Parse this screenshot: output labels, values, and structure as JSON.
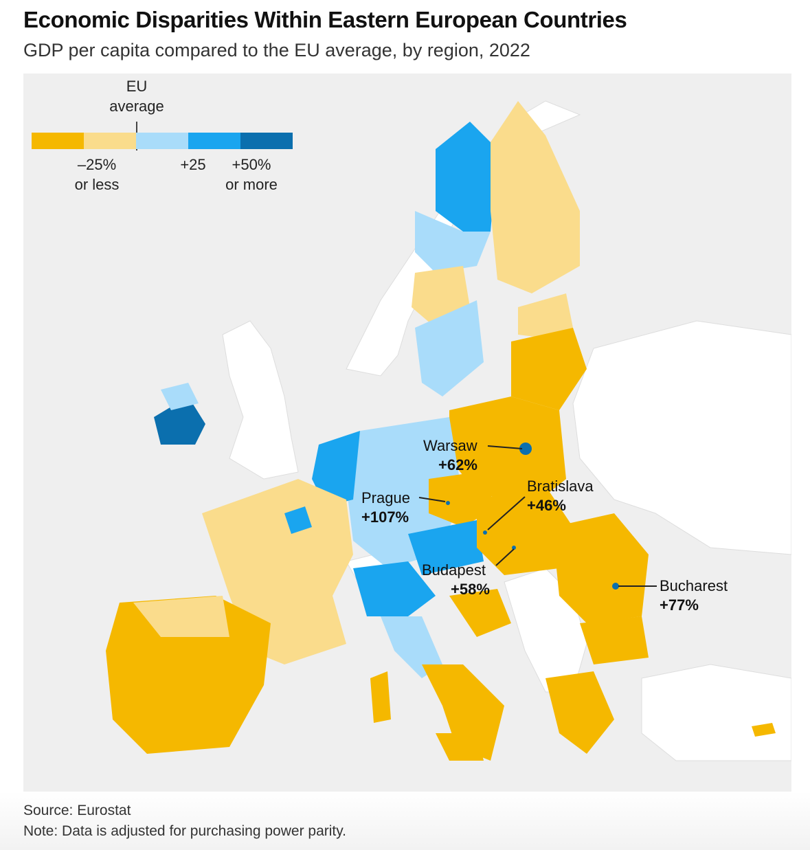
{
  "title": "Economic Disparities Within Eastern European Countries",
  "subtitle": "GDP per capita compared to the EU average, by region, 2022",
  "legend": {
    "eu_average_line1": "EU",
    "eu_average_line2": "average",
    "low_line1": "–25%",
    "low_line2": "or less",
    "mid": "+25",
    "high_line1": "+50%",
    "high_line2": "or more",
    "colors": [
      "#f5b800",
      "#fadc8c",
      "#a9dcfa",
      "#1aa5ef",
      "#0b6fae"
    ]
  },
  "colors": {
    "low": "#f5b800",
    "below": "#fadc8c",
    "above": "#a9dcfa",
    "high": "#1aa5ef",
    "highest": "#0b6fae",
    "non_eu": "#ffffff",
    "sea": "#efefef"
  },
  "cities": {
    "warsaw": {
      "name": "Warsaw",
      "value": "+62%"
    },
    "prague": {
      "name": "Prague",
      "value": "+107%"
    },
    "bratislava": {
      "name": "Bratislava",
      "value": "+46%"
    },
    "budapest": {
      "name": "Budapest",
      "value": "+58%"
    },
    "bucharest": {
      "name": "Bucharest",
      "value": "+77%"
    }
  },
  "source": "Source: Eurostat",
  "note": "Note: Data is adjusted for purchasing power parity."
}
